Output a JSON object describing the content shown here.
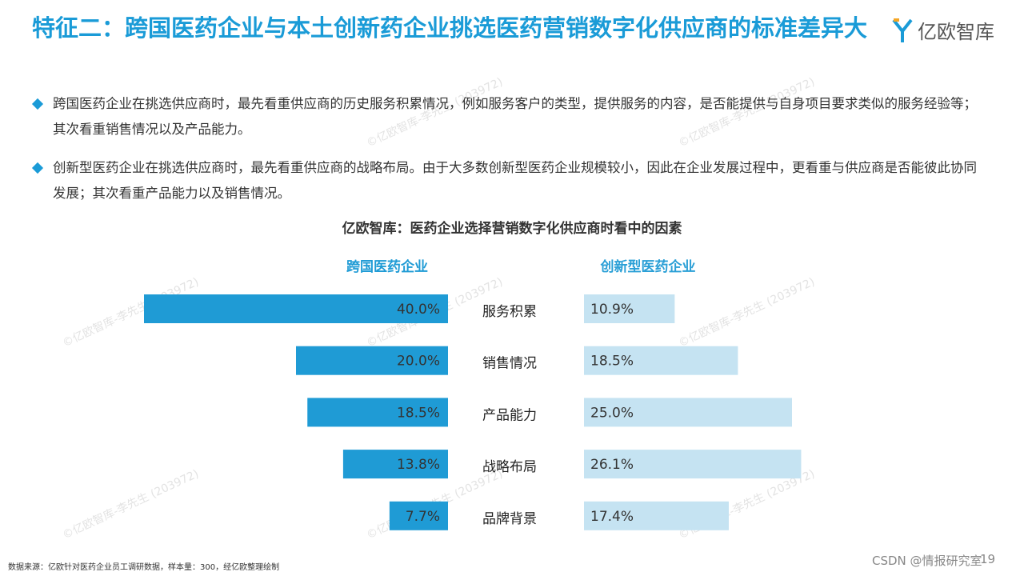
{
  "header": {
    "title": "特征二：跨国医药企业与本土创新药企业挑选医药营销数字化供应商的标准差异大",
    "logo": "亿欧智库"
  },
  "bullets": [
    "跨国医药企业在挑选供应商时，最先看重供应商的历史服务积累情况，例如服务客户的类型，提供服务的内容，是否能提供与自身项目要求类似的服务经验等；其次看重销售情况以及产品能力。",
    "创新型医药企业在挑选供应商时，最先看重供应商的战略布局。由于大多数创新型医药企业规模较小，因此在企业发展过程中，更看重与供应商是否能彼此协同发展；其次看重产品能力以及销售情况。"
  ],
  "chart_data": {
    "type": "bar",
    "title": "亿欧智库：医药企业选择营销数字化供应商时看中的因素",
    "categories": [
      "服务积累",
      "销售情况",
      "产品能力",
      "战略布局",
      "品牌背景"
    ],
    "series": [
      {
        "name": "跨国医药企业",
        "color": "#1f9bd5",
        "values": [
          40,
          20,
          18.5,
          13.8,
          7.7
        ],
        "value_labels": [
          "40.0%",
          "20.0%",
          "18.5%",
          "13.8%",
          "7.7%"
        ]
      },
      {
        "name": "创新型医药企业",
        "color": "#c5e3f2",
        "values": [
          10.9,
          18.5,
          25,
          26.1,
          17.4
        ],
        "value_labels": [
          "10.9%",
          "18.5%",
          "25.0%",
          "26.1%",
          "17.4%"
        ]
      }
    ]
  },
  "footer": {
    "source": "数据来源：亿欧针对医药企业员工调研数据，样本量：300，经亿欧整理绘制",
    "credit": "CSDN @情报研究室",
    "page": "19"
  },
  "watermark": "©亿欧智库-李先生 (203972)"
}
